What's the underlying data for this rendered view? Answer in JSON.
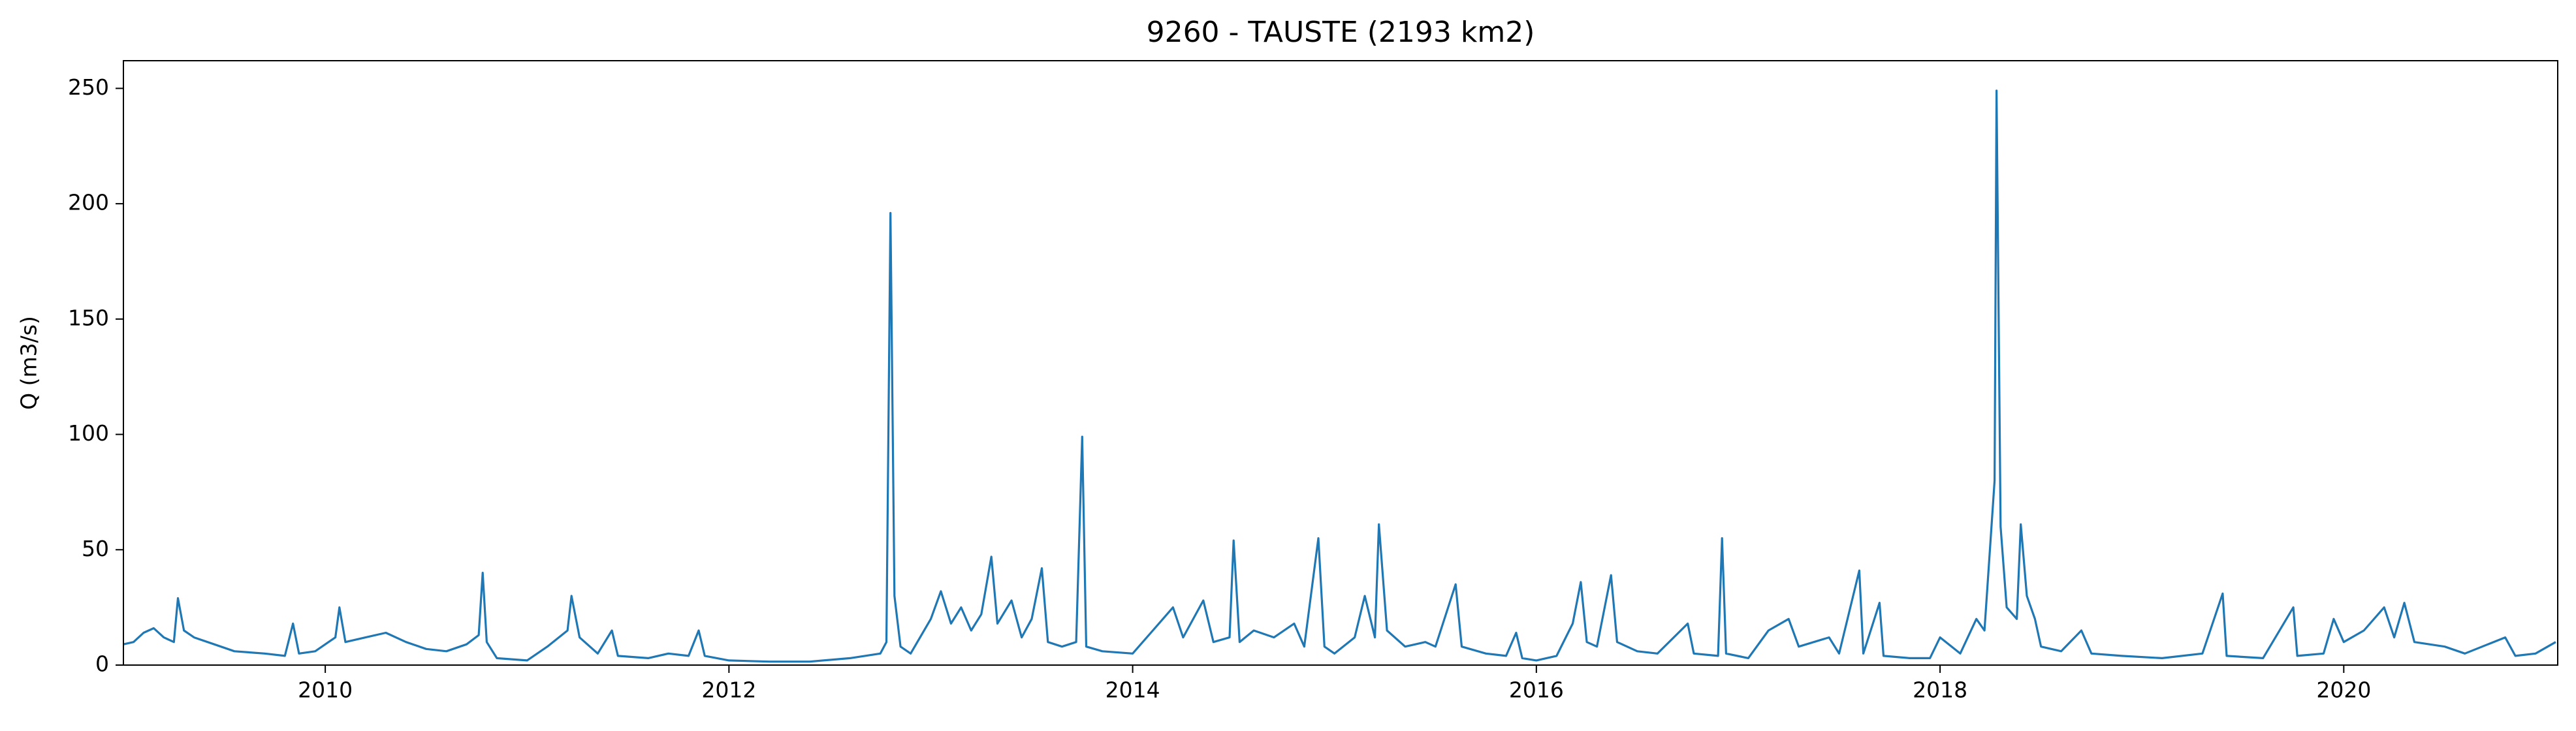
{
  "chart_data": {
    "type": "line",
    "title": "9260 - TAUSTE (2193 km2)",
    "ylabel": "Q (m3/s)",
    "x": [
      2009.0,
      2009.05,
      2009.1,
      2009.15,
      2009.2,
      2009.25,
      2009.27,
      2009.3,
      2009.35,
      2009.45,
      2009.55,
      2009.7,
      2009.8,
      2009.84,
      2009.87,
      2009.95,
      2010.0,
      2010.05,
      2010.07,
      2010.1,
      2010.2,
      2010.3,
      2010.4,
      2010.5,
      2010.6,
      2010.7,
      2010.76,
      2010.78,
      2010.8,
      2010.85,
      2011.0,
      2011.1,
      2011.2,
      2011.22,
      2011.26,
      2011.35,
      2011.42,
      2011.45,
      2011.6,
      2011.7,
      2011.8,
      2011.85,
      2011.88,
      2012.0,
      2012.2,
      2012.4,
      2012.6,
      2012.75,
      2012.78,
      2012.8,
      2012.82,
      2012.85,
      2012.9,
      2013.0,
      2013.05,
      2013.1,
      2013.15,
      2013.2,
      2013.25,
      2013.3,
      2013.33,
      2013.4,
      2013.45,
      2013.5,
      2013.55,
      2013.58,
      2013.65,
      2013.72,
      2013.75,
      2013.77,
      2013.85,
      2014.0,
      2014.1,
      2014.2,
      2014.25,
      2014.35,
      2014.4,
      2014.48,
      2014.5,
      2014.53,
      2014.6,
      2014.7,
      2014.8,
      2014.85,
      2014.92,
      2014.95,
      2015.0,
      2015.1,
      2015.15,
      2015.2,
      2015.22,
      2015.26,
      2015.35,
      2015.45,
      2015.5,
      2015.6,
      2015.63,
      2015.75,
      2015.85,
      2015.9,
      2015.93,
      2016.0,
      2016.1,
      2016.18,
      2016.22,
      2016.25,
      2016.3,
      2016.37,
      2016.4,
      2016.5,
      2016.6,
      2016.75,
      2016.78,
      2016.9,
      2016.92,
      2016.94,
      2017.05,
      2017.15,
      2017.25,
      2017.3,
      2017.45,
      2017.5,
      2017.6,
      2017.62,
      2017.7,
      2017.72,
      2017.85,
      2017.95,
      2018.0,
      2018.1,
      2018.18,
      2018.22,
      2018.27,
      2018.28,
      2018.3,
      2018.33,
      2018.38,
      2018.4,
      2018.43,
      2018.47,
      2018.5,
      2018.6,
      2018.7,
      2018.75,
      2018.9,
      2019.1,
      2019.3,
      2019.4,
      2019.42,
      2019.6,
      2019.75,
      2019.77,
      2019.9,
      2019.95,
      2020.0,
      2020.1,
      2020.2,
      2020.25,
      2020.3,
      2020.35,
      2020.5,
      2020.6,
      2020.8,
      2020.85,
      2020.95,
      2021.05
    ],
    "series": [
      {
        "name": "Q",
        "color": "#1f77b4",
        "values": [
          9,
          10,
          14,
          16,
          12,
          10,
          29,
          15,
          12,
          9,
          6,
          5,
          4,
          18,
          5,
          6,
          9,
          12,
          25,
          10,
          12,
          14,
          10,
          7,
          6,
          9,
          13,
          40,
          10,
          3,
          2,
          8,
          15,
          30,
          12,
          5,
          15,
          4,
          3,
          5,
          4,
          15,
          4,
          2,
          1.5,
          1.5,
          3,
          5,
          10,
          196,
          30,
          8,
          5,
          20,
          32,
          18,
          25,
          15,
          22,
          47,
          18,
          28,
          12,
          20,
          42,
          10,
          8,
          10,
          99,
          8,
          6,
          5,
          15,
          25,
          12,
          28,
          10,
          12,
          54,
          10,
          15,
          12,
          18,
          8,
          55,
          8,
          5,
          12,
          30,
          12,
          61,
          15,
          8,
          10,
          8,
          35,
          8,
          5,
          4,
          14,
          3,
          2,
          4,
          18,
          36,
          10,
          8,
          39,
          10,
          6,
          5,
          18,
          5,
          4,
          55,
          5,
          3,
          15,
          20,
          8,
          12,
          5,
          41,
          5,
          27,
          4,
          3,
          3,
          12,
          5,
          20,
          15,
          80,
          249,
          60,
          25,
          20,
          61,
          30,
          20,
          8,
          6,
          15,
          5,
          4,
          3,
          5,
          31,
          4,
          3,
          25,
          4,
          5,
          20,
          10,
          15,
          25,
          12,
          27,
          10,
          8,
          5,
          12,
          4,
          5,
          10
        ]
      }
    ],
    "xlim": [
      2009.0,
      2021.06
    ],
    "xticks": [
      2010,
      2012,
      2014,
      2016,
      2018,
      2020
    ],
    "ylim": [
      0,
      262
    ],
    "yticks": [
      0,
      50,
      100,
      150,
      200,
      250
    ]
  }
}
